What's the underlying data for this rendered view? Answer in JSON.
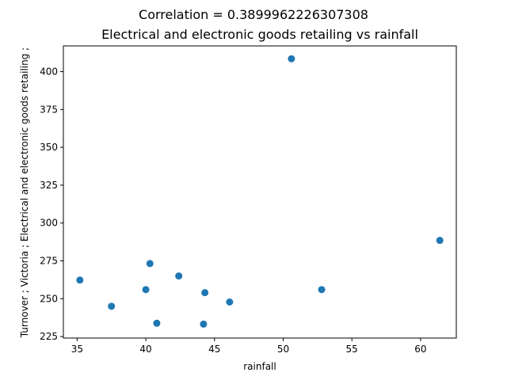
{
  "chart_data": {
    "type": "scatter",
    "title": "Correlation = 0.3899962226307308",
    "subtitle": "Electrical and electronic goods retailing vs rainfall",
    "xlabel": "rainfall",
    "ylabel": "Turnover ;  Victoria ;  Electrical and electronic goods retailing ;",
    "xlim": [
      34.0,
      62.6
    ],
    "ylim": [
      224.0,
      417.0
    ],
    "xticks": [
      35,
      40,
      45,
      50,
      55,
      60
    ],
    "yticks": [
      225,
      250,
      275,
      300,
      325,
      350,
      375,
      400
    ],
    "grid": false,
    "marker_color": "#1f77b4",
    "points": [
      {
        "x": 35.2,
        "y": 262.3
      },
      {
        "x": 37.5,
        "y": 245.0
      },
      {
        "x": 40.0,
        "y": 256.0
      },
      {
        "x": 40.3,
        "y": 273.2
      },
      {
        "x": 40.8,
        "y": 233.8
      },
      {
        "x": 42.4,
        "y": 265.0
      },
      {
        "x": 44.2,
        "y": 233.2
      },
      {
        "x": 44.3,
        "y": 254.0
      },
      {
        "x": 46.1,
        "y": 247.8
      },
      {
        "x": 50.6,
        "y": 408.5
      },
      {
        "x": 52.8,
        "y": 256.0
      },
      {
        "x": 61.4,
        "y": 288.5
      }
    ]
  }
}
